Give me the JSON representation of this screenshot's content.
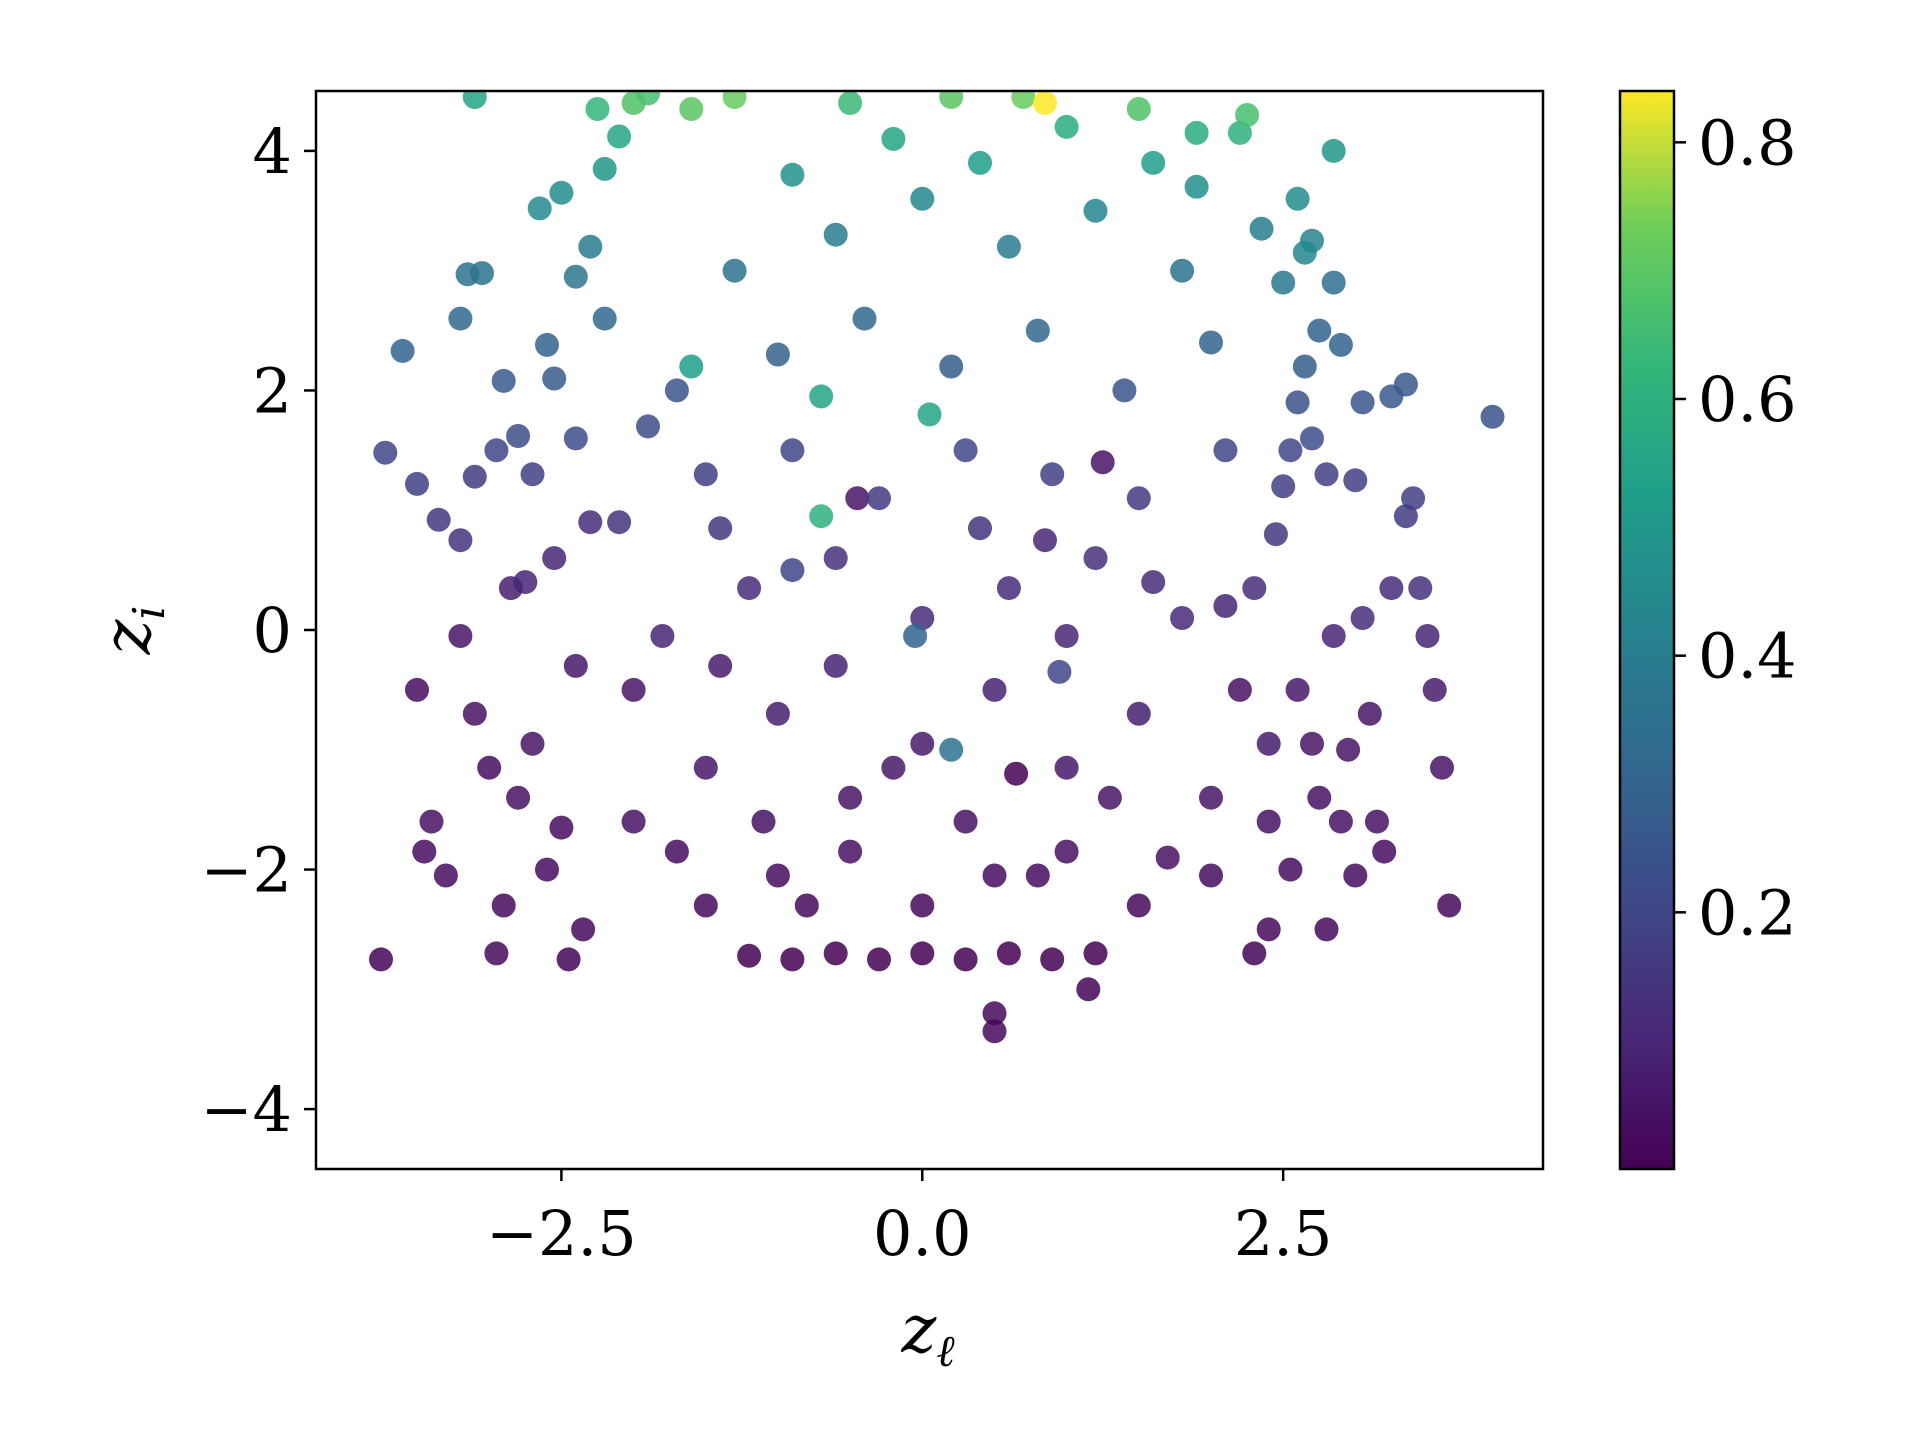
{
  "chart_data": {
    "type": "scatter",
    "title": "",
    "xlabel": "z",
    "xlabel_sub": "ℓ",
    "ylabel": "z",
    "ylabel_sub": "i",
    "xlim": [
      -4.2,
      4.3
    ],
    "ylim": [
      -4.5,
      4.5
    ],
    "x_ticks": [
      -2.5,
      0.0,
      2.5
    ],
    "x_tick_labels": [
      "−2.5",
      "0.0",
      "2.5"
    ],
    "y_ticks": [
      -4,
      -2,
      0,
      2,
      4
    ],
    "y_tick_labels": [
      "−4",
      "−2",
      "0",
      "2",
      "4"
    ],
    "grid": false,
    "colormap": "viridis",
    "colorbar": {
      "range": [
        0.0,
        0.84
      ],
      "ticks": [
        0.2,
        0.4,
        0.6,
        0.8
      ],
      "tick_labels": [
        "0.2",
        "0.4",
        "0.6",
        "0.8"
      ]
    },
    "points": [
      [
        -3.75,
        -2.75,
        0.01
      ],
      [
        -3.5,
        -0.5,
        0.03
      ],
      [
        -3.45,
        -1.85,
        0.03
      ],
      [
        -3.4,
        -1.6,
        0.04
      ],
      [
        -3.3,
        -2.05,
        0.03
      ],
      [
        -3.2,
        -0.05,
        0.05
      ],
      [
        -3.1,
        -0.7,
        0.04
      ],
      [
        -3.0,
        -1.15,
        0.03
      ],
      [
        -2.95,
        -2.7,
        0.02
      ],
      [
        -2.9,
        -2.3,
        0.02
      ],
      [
        -2.85,
        0.35,
        0.08
      ],
      [
        -2.8,
        -1.4,
        0.04
      ],
      [
        -2.7,
        -0.95,
        0.05
      ],
      [
        -2.6,
        -2.0,
        0.03
      ],
      [
        -2.55,
        0.6,
        0.1
      ],
      [
        -2.5,
        -1.65,
        0.03
      ],
      [
        -2.45,
        -2.75,
        0.01
      ],
      [
        -2.4,
        -0.3,
        0.06
      ],
      [
        -2.35,
        -2.5,
        0.02
      ],
      [
        -2.3,
        0.9,
        0.12
      ],
      [
        -3.72,
        1.48,
        0.2
      ],
      [
        -3.5,
        1.22,
        0.18
      ],
      [
        -3.35,
        0.92,
        0.15
      ],
      [
        -3.2,
        0.75,
        0.14
      ],
      [
        -3.1,
        1.28,
        0.17
      ],
      [
        -2.95,
        1.5,
        0.2
      ],
      [
        -2.9,
        2.08,
        0.27
      ],
      [
        -2.8,
        1.62,
        0.22
      ],
      [
        -2.7,
        1.3,
        0.18
      ],
      [
        -2.6,
        2.38,
        0.3
      ],
      [
        -3.6,
        2.33,
        0.3
      ],
      [
        -3.2,
        2.6,
        0.32
      ],
      [
        -3.15,
        2.97,
        0.36
      ],
      [
        -3.05,
        2.98,
        0.36
      ],
      [
        -2.65,
        3.52,
        0.45
      ],
      [
        -2.5,
        3.65,
        0.46
      ],
      [
        -2.4,
        2.95,
        0.37
      ],
      [
        -2.3,
        3.2,
        0.4
      ],
      [
        -2.2,
        3.85,
        0.5
      ],
      [
        -2.1,
        4.12,
        0.56
      ],
      [
        -2.25,
        4.35,
        0.62
      ],
      [
        -2.0,
        4.4,
        0.68
      ],
      [
        -1.9,
        4.48,
        0.66
      ],
      [
        -1.6,
        4.35,
        0.7
      ],
      [
        -1.3,
        4.45,
        0.72
      ],
      [
        -3.1,
        4.45,
        0.55
      ],
      [
        -1.2,
        -2.72,
        0.0
      ],
      [
        -0.9,
        -2.75,
        0.0
      ],
      [
        -0.6,
        -2.7,
        0.0
      ],
      [
        -0.3,
        -2.75,
        0.0
      ],
      [
        0.0,
        -2.7,
        0.0
      ],
      [
        0.3,
        -2.75,
        0.0
      ],
      [
        0.6,
        -2.7,
        0.0
      ],
      [
        0.9,
        -2.75,
        0.0
      ],
      [
        1.2,
        -2.7,
        0.0
      ],
      [
        0.5,
        -3.2,
        0.02
      ],
      [
        0.5,
        -3.35,
        0.02
      ],
      [
        1.15,
        -3.0,
        0.01
      ],
      [
        -1.5,
        -2.3,
        0.02
      ],
      [
        -1.0,
        -2.05,
        0.03
      ],
      [
        -0.5,
        -1.85,
        0.04
      ],
      [
        0.0,
        -2.3,
        0.02
      ],
      [
        0.5,
        -2.05,
        0.03
      ],
      [
        1.0,
        -1.85,
        0.04
      ],
      [
        1.5,
        -2.3,
        0.02
      ],
      [
        2.0,
        -2.05,
        0.03
      ],
      [
        -2.0,
        -1.6,
        0.04
      ],
      [
        -1.5,
        -1.15,
        0.06
      ],
      [
        -1.0,
        -0.7,
        0.08
      ],
      [
        -0.5,
        -1.4,
        0.05
      ],
      [
        0.0,
        -0.95,
        0.07
      ],
      [
        0.5,
        -0.5,
        0.09
      ],
      [
        1.0,
        -1.15,
        0.06
      ],
      [
        1.5,
        -0.7,
        0.08
      ],
      [
        2.0,
        -1.4,
        0.05
      ],
      [
        2.4,
        -0.95,
        0.07
      ],
      [
        -1.8,
        -0.05,
        0.1
      ],
      [
        -1.2,
        0.35,
        0.12
      ],
      [
        -0.6,
        0.6,
        0.13
      ],
      [
        0.0,
        0.1,
        0.11
      ],
      [
        0.6,
        0.35,
        0.12
      ],
      [
        1.2,
        0.6,
        0.13
      ],
      [
        1.8,
        0.1,
        0.11
      ],
      [
        2.3,
        0.35,
        0.12
      ],
      [
        -2.1,
        0.9,
        0.14
      ],
      [
        -1.5,
        1.3,
        0.18
      ],
      [
        -0.9,
        1.5,
        0.2
      ],
      [
        -0.3,
        1.1,
        0.16
      ],
      [
        0.3,
        1.5,
        0.2
      ],
      [
        0.9,
        1.3,
        0.18
      ],
      [
        1.5,
        1.1,
        0.16
      ],
      [
        2.1,
        1.5,
        0.2
      ],
      [
        -1.7,
        2.0,
        0.25
      ],
      [
        -1.0,
        2.3,
        0.29
      ],
      [
        -0.4,
        2.6,
        0.32
      ],
      [
        0.2,
        2.2,
        0.28
      ],
      [
        0.8,
        2.5,
        0.31
      ],
      [
        1.4,
        2.0,
        0.25
      ],
      [
        2.0,
        2.4,
        0.3
      ],
      [
        -1.3,
        3.0,
        0.36
      ],
      [
        -0.6,
        3.3,
        0.4
      ],
      [
        0.0,
        3.6,
        0.44
      ],
      [
        0.6,
        3.2,
        0.39
      ],
      [
        1.2,
        3.5,
        0.43
      ],
      [
        1.8,
        3.0,
        0.36
      ],
      [
        -0.9,
        3.8,
        0.48
      ],
      [
        -0.2,
        4.1,
        0.55
      ],
      [
        0.4,
        3.9,
        0.52
      ],
      [
        1.0,
        4.2,
        0.58
      ],
      [
        1.6,
        3.9,
        0.52
      ],
      [
        -0.5,
        4.4,
        0.64
      ],
      [
        0.2,
        4.45,
        0.7
      ],
      [
        0.85,
        4.4,
        0.84
      ],
      [
        1.5,
        4.35,
        0.68
      ],
      [
        2.25,
        4.3,
        0.66
      ],
      [
        2.2,
        4.15,
        0.6
      ],
      [
        1.9,
        4.15,
        0.58
      ],
      [
        0.7,
        4.45,
        0.72
      ],
      [
        -0.7,
        1.95,
        0.55
      ],
      [
        0.05,
        1.8,
        0.55
      ],
      [
        -1.6,
        2.2,
        0.52
      ],
      [
        -0.7,
        0.95,
        0.6
      ],
      [
        -0.45,
        1.1,
        0.05
      ],
      [
        -0.05,
        -0.05,
        0.3
      ],
      [
        0.65,
        -1.2,
        0.0
      ],
      [
        0.95,
        -0.35,
        0.2
      ],
      [
        1.25,
        1.4,
        0.05
      ],
      [
        0.85,
        0.75,
        0.1
      ],
      [
        -0.9,
        0.5,
        0.2
      ],
      [
        0.2,
        -1.0,
        0.35
      ],
      [
        2.1,
        0.2,
        0.1
      ],
      [
        2.2,
        -0.5,
        0.04
      ],
      [
        2.4,
        -1.6,
        0.04
      ],
      [
        2.55,
        -2.0,
        0.03
      ],
      [
        2.6,
        -0.5,
        0.06
      ],
      [
        2.7,
        -0.95,
        0.05
      ],
      [
        2.75,
        -1.4,
        0.04
      ],
      [
        2.8,
        -2.5,
        0.02
      ],
      [
        2.85,
        -0.05,
        0.1
      ],
      [
        2.9,
        -1.6,
        0.04
      ],
      [
        2.95,
        -1.0,
        0.05
      ],
      [
        3.0,
        -2.05,
        0.03
      ],
      [
        3.05,
        0.1,
        0.12
      ],
      [
        3.1,
        -0.7,
        0.05
      ],
      [
        3.15,
        -1.6,
        0.04
      ],
      [
        3.2,
        -1.85,
        0.03
      ],
      [
        3.25,
        0.35,
        0.12
      ],
      [
        3.35,
        0.95,
        0.17
      ],
      [
        3.45,
        0.35,
        0.13
      ],
      [
        3.5,
        -0.05,
        0.1
      ],
      [
        3.55,
        -0.5,
        0.07
      ],
      [
        3.6,
        -1.15,
        0.05
      ],
      [
        3.65,
        -2.3,
        0.02
      ],
      [
        2.3,
        -2.7,
        0.01
      ],
      [
        2.4,
        -2.5,
        0.02
      ],
      [
        2.45,
        0.8,
        0.15
      ],
      [
        2.5,
        1.2,
        0.18
      ],
      [
        2.55,
        1.5,
        0.2
      ],
      [
        2.6,
        1.9,
        0.24
      ],
      [
        2.65,
        2.2,
        0.28
      ],
      [
        2.7,
        1.6,
        0.22
      ],
      [
        2.75,
        2.5,
        0.3
      ],
      [
        2.8,
        1.3,
        0.18
      ],
      [
        2.85,
        2.9,
        0.34
      ],
      [
        2.9,
        2.38,
        0.3
      ],
      [
        3.0,
        1.25,
        0.18
      ],
      [
        3.05,
        1.9,
        0.25
      ],
      [
        3.25,
        1.95,
        0.26
      ],
      [
        3.35,
        2.05,
        0.26
      ],
      [
        3.4,
        1.1,
        0.18
      ],
      [
        3.95,
        1.78,
        0.24
      ],
      [
        2.85,
        4.0,
        0.5
      ],
      [
        2.6,
        3.6,
        0.46
      ],
      [
        2.65,
        3.15,
        0.44
      ],
      [
        2.7,
        3.25,
        0.42
      ],
      [
        2.5,
        2.9,
        0.38
      ],
      [
        2.35,
        3.35,
        0.4
      ],
      [
        1.9,
        3.7,
        0.47
      ],
      [
        -2.0,
        -0.5,
        0.05
      ],
      [
        -1.7,
        -1.85,
        0.03
      ],
      [
        -1.4,
        -0.3,
        0.07
      ],
      [
        -1.1,
        -1.6,
        0.04
      ],
      [
        -0.8,
        -2.3,
        0.02
      ],
      [
        -0.2,
        -1.15,
        0.06
      ],
      [
        0.3,
        -1.6,
        0.04
      ],
      [
        0.8,
        -2.05,
        0.03
      ],
      [
        1.3,
        -1.4,
        0.05
      ],
      [
        1.7,
        -1.9,
        0.04
      ],
      [
        -1.4,
        0.85,
        0.15
      ],
      [
        -0.6,
        -0.3,
        0.09
      ],
      [
        0.4,
        0.85,
        0.14
      ],
      [
        1.0,
        -0.05,
        0.1
      ],
      [
        1.6,
        0.4,
        0.12
      ],
      [
        -2.2,
        2.6,
        0.32
      ],
      [
        -1.9,
        1.7,
        0.22
      ],
      [
        -2.4,
        1.6,
        0.22
      ],
      [
        -2.55,
        2.1,
        0.27
      ],
      [
        -2.75,
        0.4,
        0.1
      ]
    ]
  }
}
